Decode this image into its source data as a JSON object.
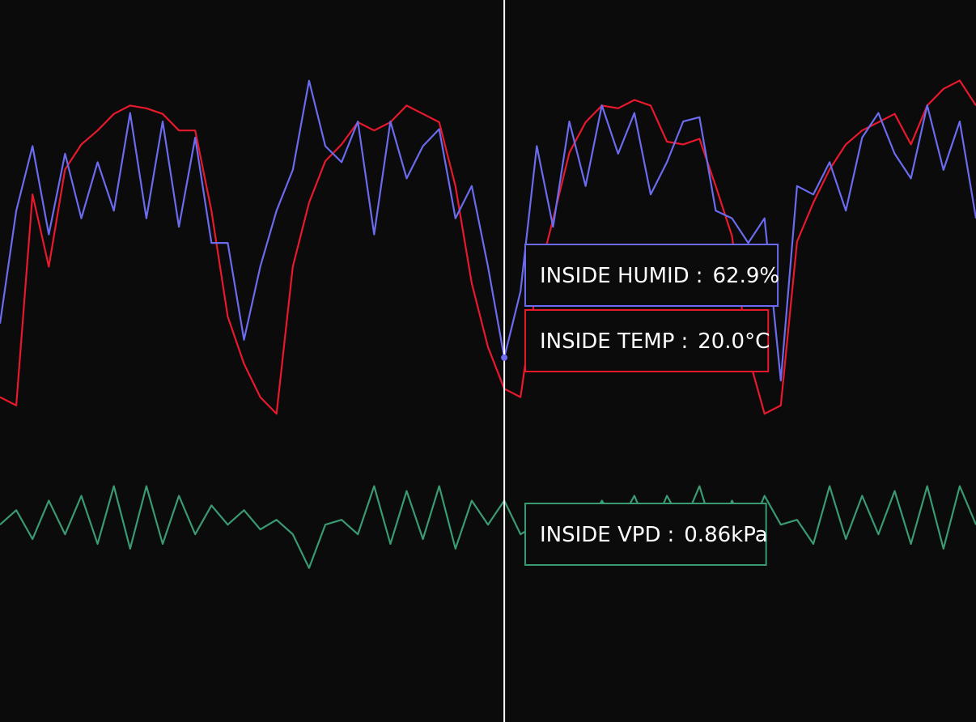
{
  "chart_data": {
    "type": "line",
    "cursor_index": 31,
    "tooltip_separator": ":",
    "series": [
      {
        "name": "INSIDE HUMID",
        "color": "#6b6bef",
        "ylim": [
          20,
          105
        ],
        "cursor_label": "62.9%",
        "values": [
          66.9,
          80.2,
          87.8,
          77.4,
          86.9,
          79.3,
          85.9,
          80.2,
          91.7,
          79.3,
          90.7,
          78.3,
          88.8,
          76.4,
          76.4,
          65.0,
          73.6,
          80.2,
          85.0,
          95.5,
          87.8,
          85.9,
          90.7,
          77.4,
          90.7,
          84.0,
          87.8,
          89.8,
          79.3,
          83.1,
          73.6,
          62.9,
          70.7,
          87.8,
          78.3,
          90.7,
          83.1,
          92.6,
          86.9,
          91.7,
          82.1,
          85.9,
          90.7,
          91.2,
          80.2,
          79.3,
          76.4,
          79.3,
          60.2,
          83.1,
          82.1,
          85.9,
          80.2,
          88.8,
          91.7,
          86.9,
          84.0,
          92.6,
          85.0,
          90.7,
          79.3
        ]
      },
      {
        "name": "INSIDE TEMP",
        "color": "#e8192c",
        "ylim": [
          8,
          34
        ],
        "cursor_label": "20.0°C",
        "values": [
          19.7,
          19.4,
          27.0,
          24.4,
          27.9,
          28.8,
          29.3,
          29.9,
          30.2,
          30.1,
          29.9,
          29.3,
          29.3,
          26.4,
          22.6,
          20.9,
          19.7,
          19.1,
          24.4,
          26.7,
          28.2,
          28.8,
          29.6,
          29.3,
          29.6,
          30.2,
          29.9,
          29.6,
          27.3,
          23.8,
          21.5,
          20.0,
          19.7,
          23.8,
          26.1,
          28.5,
          29.6,
          30.2,
          30.1,
          30.4,
          30.2,
          28.9,
          28.8,
          29.0,
          27.3,
          25.5,
          21.2,
          19.1,
          19.4,
          25.3,
          26.7,
          27.9,
          28.8,
          29.3,
          29.6,
          29.9,
          28.8,
          30.2,
          30.8,
          31.1,
          30.2
        ]
      },
      {
        "name": "INSIDE VPD",
        "color": "#3a9a72",
        "ylim": [
          0.4,
          1.9
        ],
        "cursor_label": "0.86kPa",
        "values": [
          0.81,
          0.84,
          0.78,
          0.86,
          0.79,
          0.87,
          0.77,
          0.89,
          0.76,
          0.89,
          0.77,
          0.87,
          0.79,
          0.85,
          0.81,
          0.84,
          0.8,
          0.82,
          0.79,
          0.72,
          0.81,
          0.82,
          0.79,
          0.89,
          0.77,
          0.88,
          0.78,
          0.89,
          0.76,
          0.86,
          0.81,
          0.86,
          0.79,
          0.81,
          0.82,
          0.84,
          0.8,
          0.86,
          0.81,
          0.87,
          0.79,
          0.87,
          0.81,
          0.89,
          0.78,
          0.86,
          0.79,
          0.87,
          0.81,
          0.82,
          0.77,
          0.89,
          0.78,
          0.87,
          0.79,
          0.88,
          0.77,
          0.89,
          0.76,
          0.89,
          0.81
        ]
      }
    ]
  }
}
